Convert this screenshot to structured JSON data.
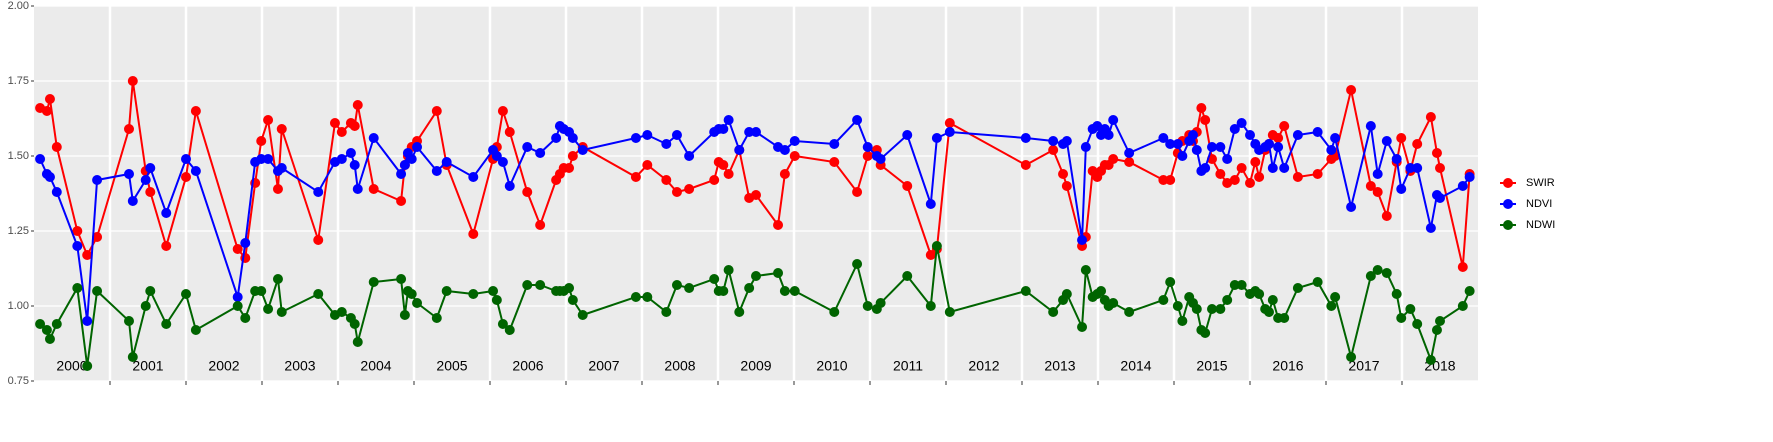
{
  "chart_data": {
    "type": "line",
    "x": [
      2000.08,
      2000.17,
      2000.21,
      2000.3,
      2000.57,
      2000.7,
      2000.83,
      2001.25,
      2001.3,
      2001.47,
      2001.53,
      2001.74,
      2002.0,
      2002.13,
      2002.68,
      2002.78,
      2002.91,
      2002.99,
      2003.08,
      2003.21,
      2003.26,
      2003.74,
      2003.96,
      2004.05,
      2004.17,
      2004.22,
      2004.26,
      2004.47,
      2004.83,
      2004.88,
      2004.92,
      2004.97,
      2005.04,
      2005.3,
      2005.43,
      2005.78,
      2006.04,
      2006.09,
      2006.17,
      2006.26,
      2006.49,
      2006.66,
      2006.87,
      2006.92,
      2006.97,
      2007.04,
      2007.09,
      2007.22,
      2007.92,
      2008.07,
      2008.32,
      2008.46,
      2008.62,
      2008.95,
      2009.01,
      2009.07,
      2009.14,
      2009.28,
      2009.41,
      2009.5,
      2009.79,
      2009.88,
      2010.01,
      2010.53,
      2010.83,
      2010.97,
      2011.09,
      2011.14,
      2011.49,
      2011.8,
      2011.88,
      2012.05,
      2013.05,
      2013.41,
      2013.54,
      2013.59,
      2013.79,
      2013.84,
      2013.93,
      2013.99,
      2014.04,
      2014.09,
      2014.14,
      2014.2,
      2014.41,
      2014.86,
      2014.95,
      2015.05,
      2015.11,
      2015.2,
      2015.25,
      2015.3,
      2015.36,
      2015.41,
      2015.5,
      2015.61,
      2015.7,
      2015.8,
      2015.89,
      2016.0,
      2016.07,
      2016.12,
      2016.2,
      2016.25,
      2016.3,
      2016.37,
      2016.45,
      2016.63,
      2016.89,
      2017.07,
      2017.12,
      2017.33,
      2017.59,
      2017.68,
      2017.8,
      2017.93,
      2017.99,
      2018.11,
      2018.2,
      2018.38,
      2018.46,
      2018.5,
      2018.8,
      2018.89
    ],
    "series": [
      {
        "name": "SWIR",
        "color": "#ff0000",
        "values": [
          1.66,
          1.65,
          1.69,
          1.53,
          1.25,
          1.17,
          1.23,
          1.59,
          1.75,
          1.45,
          1.38,
          1.2,
          1.43,
          1.65,
          1.19,
          1.16,
          1.41,
          1.55,
          1.62,
          1.39,
          1.59,
          1.22,
          1.61,
          1.58,
          1.61,
          1.6,
          1.67,
          1.39,
          1.35,
          1.47,
          1.5,
          1.53,
          1.55,
          1.65,
          1.47,
          1.24,
          1.49,
          1.53,
          1.65,
          1.58,
          1.38,
          1.27,
          1.42,
          1.44,
          1.46,
          1.46,
          1.5,
          1.53,
          1.43,
          1.47,
          1.42,
          1.38,
          1.39,
          1.42,
          1.48,
          1.47,
          1.44,
          1.52,
          1.36,
          1.37,
          1.27,
          1.44,
          1.5,
          1.48,
          1.38,
          1.5,
          1.52,
          1.47,
          1.4,
          1.17,
          1.19,
          1.61,
          1.47,
          1.52,
          1.44,
          1.4,
          1.2,
          1.23,
          1.45,
          1.43,
          1.45,
          1.47,
          1.47,
          1.49,
          1.48,
          1.42,
          1.42,
          1.51,
          1.55,
          1.57,
          1.55,
          1.58,
          1.66,
          1.62,
          1.49,
          1.44,
          1.41,
          1.42,
          1.46,
          1.41,
          1.48,
          1.43,
          1.52,
          1.54,
          1.57,
          1.56,
          1.6,
          1.43,
          1.44,
          1.49,
          1.5,
          1.72,
          1.4,
          1.38,
          1.3,
          1.48,
          1.56,
          1.45,
          1.54,
          1.63,
          1.51,
          1.46,
          1.13,
          1.44
        ]
      },
      {
        "name": "NDVI",
        "color": "#0000ff",
        "values": [
          1.49,
          1.44,
          1.43,
          1.38,
          1.2,
          0.95,
          1.42,
          1.44,
          1.35,
          1.42,
          1.46,
          1.31,
          1.49,
          1.45,
          1.03,
          1.21,
          1.48,
          1.49,
          1.49,
          1.45,
          1.46,
          1.38,
          1.48,
          1.49,
          1.51,
          1.47,
          1.39,
          1.56,
          1.44,
          1.47,
          1.51,
          1.49,
          1.53,
          1.45,
          1.48,
          1.43,
          1.52,
          1.5,
          1.48,
          1.4,
          1.53,
          1.51,
          1.56,
          1.6,
          1.59,
          1.58,
          1.56,
          1.52,
          1.56,
          1.57,
          1.54,
          1.57,
          1.5,
          1.58,
          1.59,
          1.59,
          1.62,
          1.52,
          1.58,
          1.58,
          1.53,
          1.52,
          1.55,
          1.54,
          1.62,
          1.53,
          1.5,
          1.49,
          1.57,
          1.34,
          1.56,
          1.58,
          1.56,
          1.55,
          1.54,
          1.55,
          1.22,
          1.53,
          1.59,
          1.6,
          1.57,
          1.59,
          1.57,
          1.62,
          1.51,
          1.56,
          1.54,
          1.54,
          1.5,
          1.55,
          1.57,
          1.52,
          1.45,
          1.46,
          1.53,
          1.53,
          1.49,
          1.59,
          1.61,
          1.57,
          1.54,
          1.52,
          1.53,
          1.54,
          1.46,
          1.53,
          1.46,
          1.57,
          1.58,
          1.52,
          1.56,
          1.33,
          1.6,
          1.44,
          1.55,
          1.49,
          1.39,
          1.46,
          1.46,
          1.26,
          1.37,
          1.36,
          1.4,
          1.43
        ]
      },
      {
        "name": "NDWI",
        "color": "#006400",
        "values": [
          0.94,
          0.92,
          0.89,
          0.94,
          1.06,
          0.8,
          1.05,
          0.95,
          0.83,
          1.0,
          1.05,
          0.94,
          1.04,
          0.92,
          1.0,
          0.96,
          1.05,
          1.05,
          0.99,
          1.09,
          0.98,
          1.04,
          0.97,
          0.98,
          0.96,
          0.94,
          0.88,
          1.08,
          1.09,
          0.97,
          1.05,
          1.04,
          1.01,
          0.96,
          1.05,
          1.04,
          1.05,
          1.02,
          0.94,
          0.92,
          1.07,
          1.07,
          1.05,
          1.05,
          1.05,
          1.06,
          1.02,
          0.97,
          1.03,
          1.03,
          0.98,
          1.07,
          1.06,
          1.09,
          1.05,
          1.05,
          1.12,
          0.98,
          1.06,
          1.1,
          1.11,
          1.05,
          1.05,
          0.98,
          1.14,
          1.0,
          0.99,
          1.01,
          1.1,
          1.0,
          1.2,
          0.98,
          1.05,
          0.98,
          1.02,
          1.04,
          0.93,
          1.12,
          1.03,
          1.04,
          1.05,
          1.02,
          1.0,
          1.01,
          0.98,
          1.02,
          1.08,
          1.0,
          0.95,
          1.03,
          1.01,
          0.99,
          0.92,
          0.91,
          0.99,
          0.99,
          1.02,
          1.07,
          1.07,
          1.04,
          1.05,
          1.04,
          0.99,
          0.98,
          1.02,
          0.96,
          0.96,
          1.06,
          1.08,
          1.0,
          1.03,
          0.83,
          1.1,
          1.12,
          1.11,
          1.04,
          0.96,
          0.99,
          0.94,
          0.82,
          0.92,
          0.95,
          1.0,
          1.05
        ]
      }
    ],
    "xlim": [
      2000,
      2019
    ],
    "xticks": [
      2001,
      2002,
      2003,
      2004,
      2005,
      2006,
      2007,
      2008,
      2009,
      2010,
      2011,
      2012,
      2013,
      2014,
      2015,
      2016,
      2017,
      2018
    ],
    "year_labels": [
      {
        "value": 2000.5,
        "label": "2000"
      },
      {
        "value": 2001.5,
        "label": "2001"
      },
      {
        "value": 2002.5,
        "label": "2002"
      },
      {
        "value": 2003.5,
        "label": "2003"
      },
      {
        "value": 2004.5,
        "label": "2004"
      },
      {
        "value": 2005.5,
        "label": "2005"
      },
      {
        "value": 2006.5,
        "label": "2006"
      },
      {
        "value": 2007.5,
        "label": "2007"
      },
      {
        "value": 2008.5,
        "label": "2008"
      },
      {
        "value": 2009.5,
        "label": "2009"
      },
      {
        "value": 2010.5,
        "label": "2010"
      },
      {
        "value": 2011.5,
        "label": "2011"
      },
      {
        "value": 2012.5,
        "label": "2012"
      },
      {
        "value": 2013.5,
        "label": "2013"
      },
      {
        "value": 2014.5,
        "label": "2014"
      },
      {
        "value": 2015.5,
        "label": "2015"
      },
      {
        "value": 2016.5,
        "label": "2016"
      },
      {
        "value": 2017.5,
        "label": "2017"
      },
      {
        "value": 2018.5,
        "label": "2018"
      }
    ],
    "ylim": [
      0.75,
      2.0
    ],
    "yticks": [
      0.75,
      {
        "value": 1.0,
        "label": "1.00"
      },
      1.25,
      {
        "value": 1.5,
        "label": "1.50"
      },
      1.75,
      {
        "value": 2.0,
        "label": "2.00"
      }
    ],
    "grid": true
  }
}
